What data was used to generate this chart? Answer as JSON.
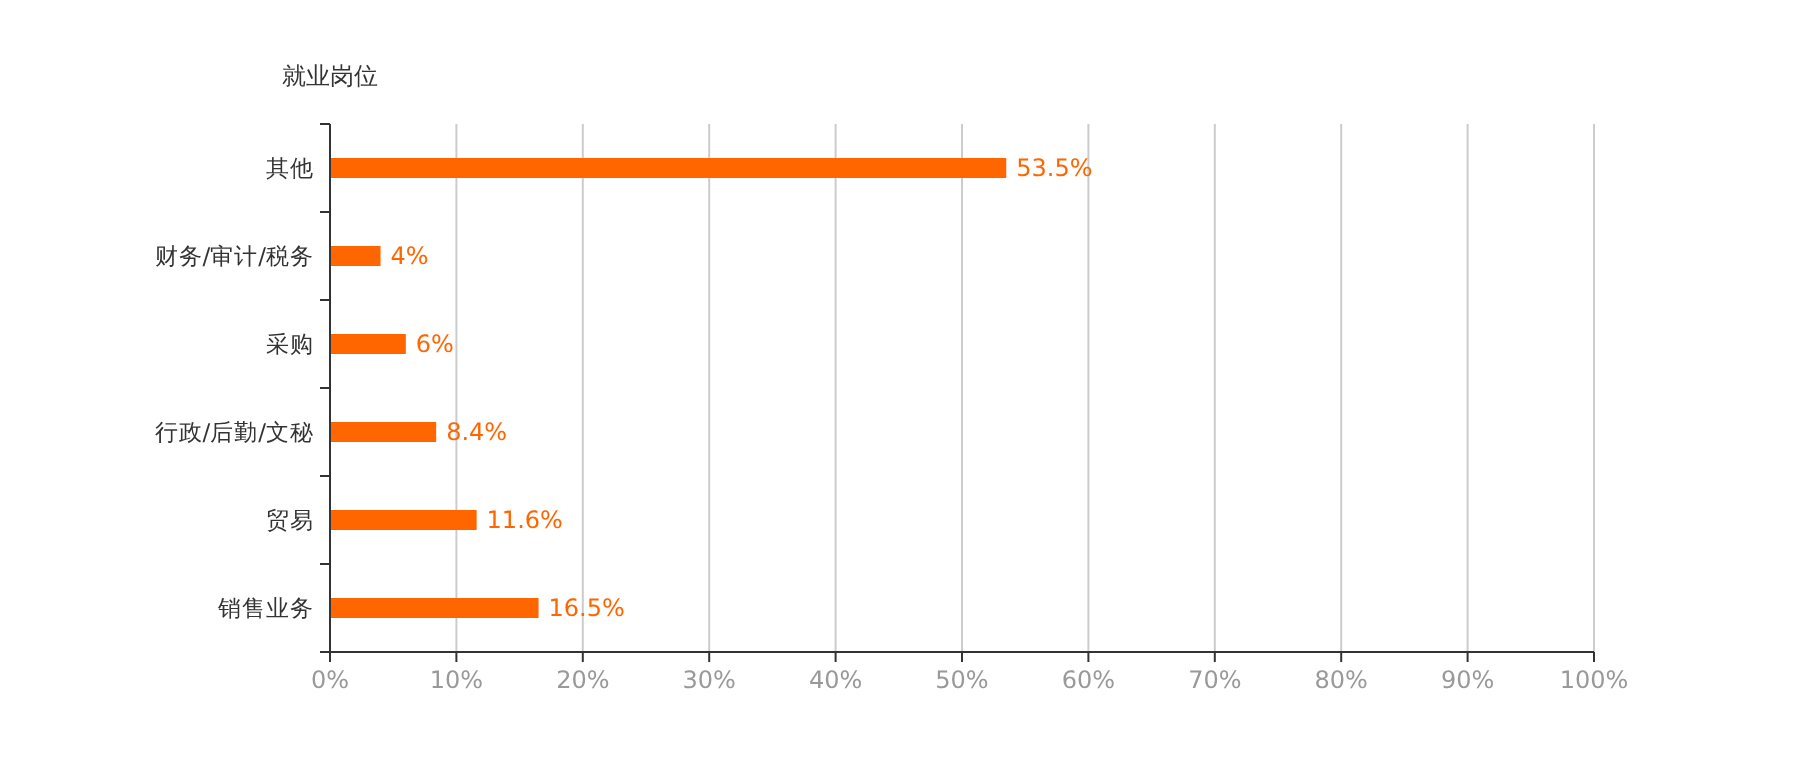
{
  "chart_data": {
    "type": "bar",
    "orientation": "horizontal",
    "ylabel": "就业岗位",
    "categories": [
      "其他",
      "财务/审计/税务",
      "采购",
      "行政/后勤/文秘",
      "贸易",
      "销售业务"
    ],
    "values": [
      53.5,
      4,
      6,
      8.4,
      11.6,
      16.5
    ],
    "value_labels": [
      "53.5%",
      "4%",
      "6%",
      "8.4%",
      "11.6%",
      "16.5%"
    ],
    "color": "#ff6600",
    "xlim": [
      0,
      100
    ],
    "xticks": [
      {
        "value": 0,
        "label": "0%"
      },
      {
        "value": 10,
        "label": "10%"
      },
      {
        "value": 20,
        "label": "20%"
      },
      {
        "value": 30,
        "label": "30%"
      },
      {
        "value": 40,
        "label": "40%"
      },
      {
        "value": 50,
        "label": "50%"
      },
      {
        "value": 60,
        "label": "60%"
      },
      {
        "value": 70,
        "label": "70%"
      },
      {
        "value": 80,
        "label": "80%"
      },
      {
        "value": 90,
        "label": "90%"
      },
      {
        "value": 100,
        "label": "100%"
      }
    ],
    "grid": "x"
  }
}
